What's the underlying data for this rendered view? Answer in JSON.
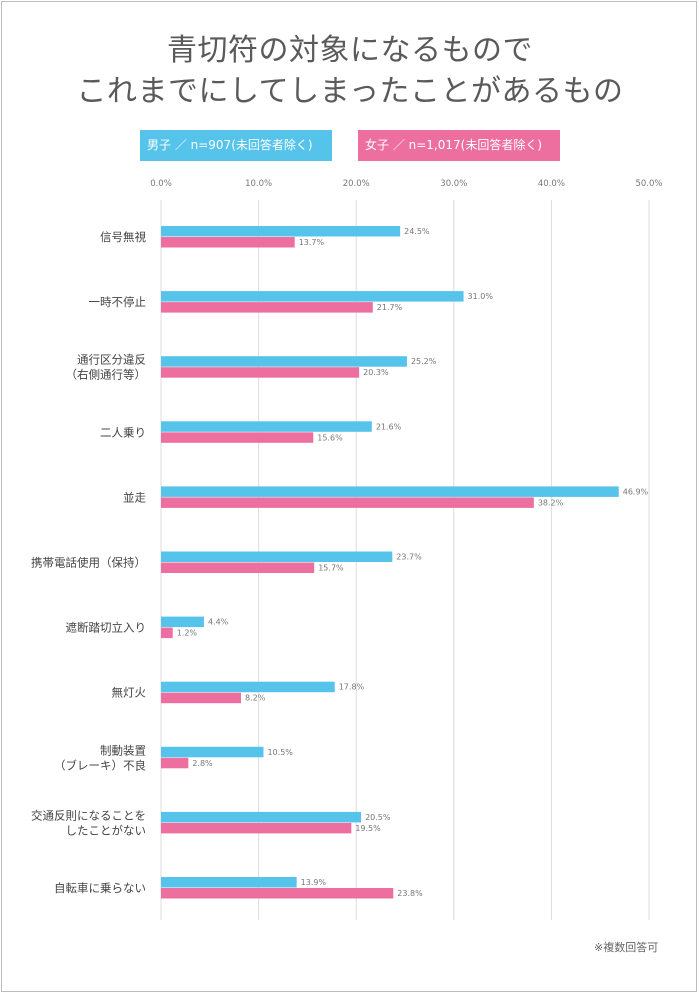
{
  "title_lines": [
    "青切符の対象になるもので",
    "これまでにしてしまったことがあるもの"
  ],
  "legend": {
    "male": "男子 ／ n=907(未回答者除く)",
    "female": "女子 ／ n=1,017(未回答者除く)"
  },
  "note": "※複数回答可",
  "colors": {
    "male": "#56c3ea",
    "female": "#ec6fa0"
  },
  "chart_data": {
    "type": "bar",
    "orientation": "horizontal",
    "xlim": [
      0,
      50
    ],
    "ticks": [
      "0.0%",
      "10.0%",
      "20.0%",
      "30.0%",
      "40.0%",
      "50.0%"
    ],
    "tick_values": [
      0,
      10,
      20,
      30,
      40,
      50
    ],
    "grid": true,
    "legend_position": "top",
    "categories": [
      [
        "信号無視"
      ],
      [
        "一時不停止"
      ],
      [
        "通行区分違反",
        "（右側通行等）"
      ],
      [
        "二人乗り"
      ],
      [
        "並走"
      ],
      [
        "携帯電話使用（保持）"
      ],
      [
        "遮断踏切立入り"
      ],
      [
        "無灯火"
      ],
      [
        "制動装置",
        "（ブレーキ）不良"
      ],
      [
        "交通反則になることを",
        "したことがない"
      ],
      [
        "自転車に乗らない"
      ]
    ],
    "series": [
      {
        "name": "男子 ／ n=907(未回答者除く)",
        "values": [
          24.5,
          31.0,
          25.2,
          21.6,
          46.9,
          23.7,
          4.4,
          17.8,
          10.5,
          20.5,
          13.9
        ],
        "labels": [
          "24.5%",
          "31.0%",
          "25.2%",
          "21.6%",
          "46.9%",
          "23.7%",
          "4.4%",
          "17.8%",
          "10.5%",
          "20.5%",
          "13.9%"
        ]
      },
      {
        "name": "女子 ／ n=1,017(未回答者除く)",
        "values": [
          13.7,
          21.7,
          20.3,
          15.6,
          38.2,
          15.7,
          1.2,
          8.2,
          2.8,
          19.5,
          23.8
        ],
        "labels": [
          "13.7%",
          "21.7%",
          "20.3%",
          "15.6%",
          "38.2%",
          "15.7%",
          "1.2%",
          "8.2%",
          "2.8%",
          "19.5%",
          "23.8%"
        ]
      }
    ]
  }
}
